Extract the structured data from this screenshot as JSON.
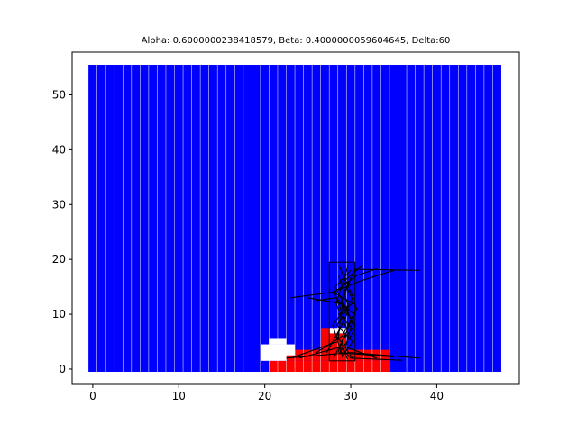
{
  "chart_data": {
    "type": "heatmap",
    "title": "Alpha: 0.6000000238418579, Beta: 0.4000000059604645, Delta:60",
    "xlabel": "",
    "ylabel": "",
    "xlim": [
      -2.4,
      49.6
    ],
    "ylim": [
      -2.8,
      57.8
    ],
    "xticks": [
      0,
      10,
      20,
      30,
      40
    ],
    "yticks": [
      0,
      10,
      20,
      30,
      40,
      50
    ],
    "grid": false,
    "colors": {
      "background_cells": "#0000ff",
      "hot_cells": "#ff0000",
      "empty_cells": "#ffffff",
      "cell_separator": "#ffffff",
      "paths": "#000000"
    },
    "column_x_values": [
      0,
      1,
      2,
      3,
      4,
      5,
      6,
      7,
      8,
      9,
      10,
      11,
      12,
      13,
      14,
      15,
      16,
      17,
      18,
      19,
      20,
      21,
      22,
      23,
      24,
      25,
      26,
      27,
      28,
      29,
      30,
      31,
      32,
      33,
      34,
      35,
      36,
      37,
      38,
      39,
      40,
      41,
      42,
      43,
      44,
      45,
      46,
      47
    ],
    "row_range": [
      0,
      55
    ],
    "red_regions": [
      {
        "x": [
          21,
          35
        ],
        "y": [
          0,
          2
        ]
      },
      {
        "x": [
          23,
          35
        ],
        "y": [
          2,
          4
        ]
      },
      {
        "x": [
          27,
          29
        ],
        "y": [
          4,
          8
        ]
      },
      {
        "x": [
          29,
          30
        ],
        "y": [
          4,
          7
        ]
      }
    ],
    "white_regions": [
      {
        "x": [
          20,
          23
        ],
        "y": [
          2,
          5
        ]
      },
      {
        "x": [
          21,
          23
        ],
        "y": [
          5,
          6
        ]
      },
      {
        "x": [
          23,
          24
        ],
        "y": [
          3,
          5
        ]
      },
      {
        "x": [
          28,
          30
        ],
        "y": [
          7,
          8
        ]
      }
    ],
    "box": {
      "x": [
        27.5,
        30.5
      ],
      "y": [
        1.5,
        19.5
      ]
    },
    "trajectories": [
      [
        [
          22.5,
          2
        ],
        [
          30,
          3
        ],
        [
          38,
          2
        ]
      ],
      [
        [
          23,
          2
        ],
        [
          28.5,
          5
        ],
        [
          29.2,
          14
        ],
        [
          30.5,
          18.2
        ],
        [
          38,
          18
        ]
      ],
      [
        [
          23,
          13
        ],
        [
          27.8,
          14
        ],
        [
          29.5,
          15
        ],
        [
          31,
          16
        ],
        [
          35,
          18
        ]
      ],
      [
        [
          28,
          2
        ],
        [
          29.6,
          7
        ],
        [
          28.3,
          12
        ],
        [
          29.7,
          19
        ]
      ],
      [
        [
          29.1,
          2
        ],
        [
          27.9,
          8
        ],
        [
          30.3,
          13
        ],
        [
          28.6,
          19
        ]
      ],
      [
        [
          28.5,
          3
        ],
        [
          30.1,
          9
        ],
        [
          28.2,
          15
        ],
        [
          30,
          18
        ]
      ],
      [
        [
          26,
          3
        ],
        [
          29,
          6
        ],
        [
          30.7,
          11
        ],
        [
          29.2,
          16
        ],
        [
          31.4,
          19
        ]
      ],
      [
        [
          24,
          2
        ],
        [
          28.8,
          4
        ],
        [
          30,
          2
        ],
        [
          36,
          1.6
        ]
      ],
      [
        [
          25,
          13
        ],
        [
          28.7,
          12
        ],
        [
          30.4,
          10
        ],
        [
          29.4,
          4
        ],
        [
          33,
          2
        ]
      ],
      [
        [
          30.2,
          2
        ],
        [
          28.4,
          6
        ],
        [
          29.8,
          11
        ],
        [
          28.6,
          17
        ]
      ],
      [
        [
          27.2,
          3
        ],
        [
          29.3,
          9
        ],
        [
          28.1,
          14
        ],
        [
          30.6,
          17
        ],
        [
          33,
          18.3
        ]
      ],
      [
        [
          29.6,
          1.8
        ],
        [
          28.9,
          5
        ],
        [
          30.5,
          8
        ],
        [
          28.8,
          12
        ],
        [
          29.9,
          16
        ]
      ],
      [
        [
          26,
          12.5
        ],
        [
          28.3,
          13
        ],
        [
          29.6,
          11
        ],
        [
          28.4,
          8
        ],
        [
          30.2,
          5
        ],
        [
          29,
          2.2
        ]
      ],
      [
        [
          28,
          14
        ],
        [
          30.2,
          12
        ],
        [
          28.6,
          10
        ],
        [
          30.4,
          7
        ],
        [
          28.7,
          3
        ],
        [
          35,
          2.2
        ]
      ]
    ]
  }
}
